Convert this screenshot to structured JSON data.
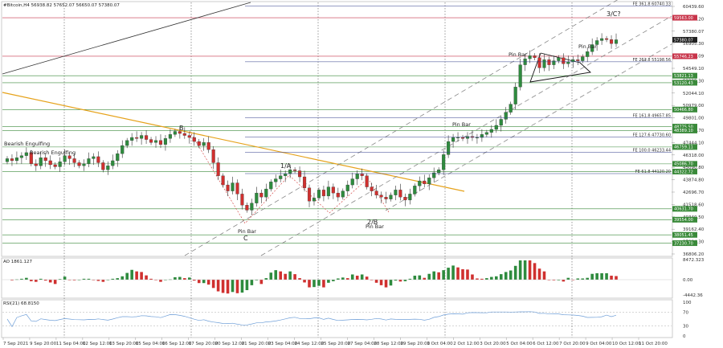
{
  "chart_data": {
    "type": "candlestick",
    "header": "#Bitcoin,H4  56938.82 57652.07 56650.07 57380.07",
    "symbol": "#Bitcoin",
    "timeframe": "H4",
    "ohlc_header": {
      "open": "56938.82",
      "high": "57652.07",
      "low": "56650.07",
      "close": "57380.07"
    },
    "price_axis": [
      "60439.60",
      "58893.20",
      "57380.07",
      "56905.30",
      "55625.09",
      "54549.10",
      "53335.30",
      "52044.10",
      "50979.00",
      "49801.00",
      "48601.70",
      "47444.10",
      "46318.00",
      "45090.80",
      "43874.80",
      "42696.70",
      "41518.60",
      "40340.50",
      "39162.40",
      "37984.30",
      "36806.20"
    ],
    "price_range": [
      36000,
      61000
    ],
    "price_tags": [
      {
        "value": "59563.00",
        "color": "#c8344a"
      },
      {
        "value": "57380.07",
        "color": "#222222"
      },
      {
        "value": "55746.23",
        "color": "#c8344a"
      },
      {
        "value": "53821.13",
        "color": "#3a8a3a"
      },
      {
        "value": "53120.43",
        "color": "#3a8a3a"
      },
      {
        "value": "50466.80",
        "color": "#3a8a3a"
      },
      {
        "value": "48775.50",
        "color": "#3a8a3a"
      },
      {
        "value": "48389.10",
        "color": "#3a8a3a"
      },
      {
        "value": "46759.11",
        "color": "#3a8a3a"
      },
      {
        "value": "45086.70",
        "color": "#3a8a3a"
      },
      {
        "value": "44322.72",
        "color": "#3a8a3a"
      },
      {
        "value": "40631.70",
        "color": "#3a8a3a"
      },
      {
        "value": "39554.00",
        "color": "#3a8a3a"
      },
      {
        "value": "38051.45",
        "color": "#3a8a3a"
      },
      {
        "value": "37230.70",
        "color": "#3a8a3a"
      }
    ],
    "fib_labels": [
      {
        "text": "FE 361.8 60740.33",
        "price": 60740
      },
      {
        "text": "FE 261.8 55198.56",
        "price": 55198
      },
      {
        "text": "FE 161.8 49657.85",
        "price": 49657
      },
      {
        "text": "FE 127.6 47730.60",
        "price": 47730
      },
      {
        "text": "FE 100.0 46233.44",
        "price": 46233
      },
      {
        "text": "FE 61.8 44120.20",
        "price": 44120
      }
    ],
    "annotations": [
      {
        "text": "Bearish Engulfing"
      },
      {
        "text": "Bearish Engulfing"
      },
      {
        "text": "B"
      },
      {
        "text": "1/A"
      },
      {
        "text": "Pin Bar"
      },
      {
        "text": "C"
      },
      {
        "text": "2/B"
      },
      {
        "text": "Pin Bar"
      },
      {
        "text": "Pin Bar"
      },
      {
        "text": "Pin Bar"
      },
      {
        "text": "Pin Bar"
      },
      {
        "text": "3/C?"
      }
    ],
    "time_labels": [
      "7 Sep 2021",
      "9 Sep 20:00",
      "11 Sep 04:00",
      "12 Sep 12:00",
      "13 Sep 20:00",
      "15 Sep 04:00",
      "16 Sep 12:00",
      "17 Sep 20:00",
      "20 Sep 12:00",
      "21 Sep 20:00",
      "23 Sep 04:00",
      "24 Sep 12:00",
      "25 Sep 20:00",
      "27 Sep 04:00",
      "28 Sep 12:00",
      "29 Sep 20:00",
      "1 Oct 04:00",
      "2 Oct 12:00",
      "3 Oct 20:00",
      "5 Oct 04:00",
      "6 Oct 12:00",
      "7 Oct 20:00",
      "9 Oct 04:00",
      "10 Oct 12:00",
      "11 Oct 20:00"
    ],
    "closes": [
      45600,
      45400,
      45700,
      45900,
      46200,
      45100,
      44900,
      45700,
      45400,
      45000,
      44800,
      45300,
      45900,
      45600,
      45200,
      44900,
      45100,
      45600,
      45800,
      45200,
      44500,
      44900,
      45400,
      46100,
      46900,
      47400,
      47700,
      47600,
      47900,
      47500,
      47200,
      47400,
      47000,
      47600,
      48000,
      48300,
      48100,
      47900,
      47700,
      47300,
      46900,
      47200,
      46500,
      45200,
      43900,
      43000,
      42400,
      43200,
      42100,
      41000,
      40500,
      41200,
      42200,
      41800,
      42600,
      43300,
      43600,
      43900,
      44100,
      44500,
      44400,
      43800,
      42700,
      41400,
      41700,
      42500,
      41900,
      42800,
      42200,
      41800,
      42400,
      43000,
      43600,
      44100,
      43900,
      42800,
      42400,
      42000,
      41800,
      41600,
      42000,
      42500,
      41800,
      41500,
      42100,
      42900,
      43400,
      43100,
      43700,
      44200,
      44500,
      46000,
      47300,
      47700,
      47700,
      47600,
      47800,
      47700,
      47700,
      48000,
      48200,
      48500,
      48900,
      49500,
      50200,
      51000,
      52700,
      54900,
      55500,
      55800,
      55600,
      54600,
      55400,
      54900,
      55300,
      55600,
      55000,
      55200,
      55400,
      55300,
      55700,
      56200,
      56900,
      57300,
      57500,
      57400,
      57000,
      57380
    ],
    "indicators": [
      {
        "name": "AO",
        "label": "AO 1861.127",
        "scale": [
          "8472.323",
          "0.00",
          "-4442.36"
        ]
      },
      {
        "name": "RSI",
        "label": "RSI(21) 68.8150",
        "scale": [
          "100",
          "70",
          "30",
          "0"
        ],
        "value": 68.815
      }
    ],
    "colors": {
      "bull": "#2e8b3e",
      "bear": "#d0302f",
      "trendline": "#e6a21a",
      "channel": "#888888",
      "support": "#3a8a3a",
      "resistance": "#c8344a",
      "rsi": "#6f9fd8"
    }
  }
}
